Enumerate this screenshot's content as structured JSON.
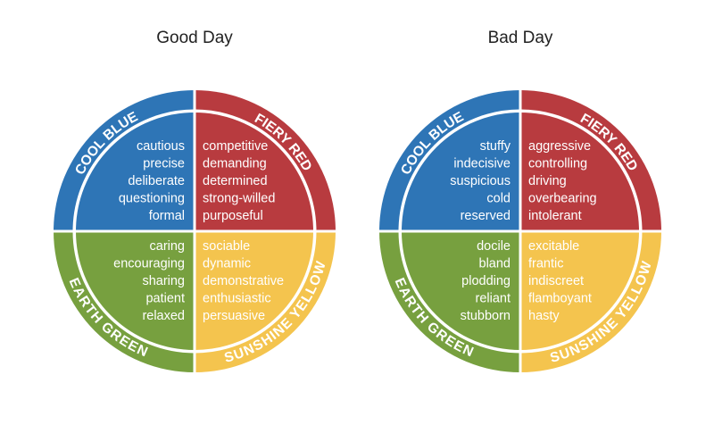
{
  "colors": {
    "blue": "#2E75B6",
    "red": "#B83B3F",
    "green": "#77A03F",
    "yellow": "#F4C44E",
    "separator": "#ffffff"
  },
  "wheels": [
    {
      "title": "Good Day",
      "quadrants": {
        "blue": {
          "label": "COOL BLUE",
          "words": [
            "cautious",
            "precise",
            "deliberate",
            "questioning",
            "formal"
          ]
        },
        "red": {
          "label": "FIERY RED",
          "words": [
            "competitive",
            "demanding",
            "determined",
            "strong-willed",
            "purposeful"
          ]
        },
        "green": {
          "label": "EARTH GREEN",
          "words": [
            "caring",
            "encouraging",
            "sharing",
            "patient",
            "relaxed"
          ]
        },
        "yellow": {
          "label": "SUNSHINE YELLOW",
          "words": [
            "sociable",
            "dynamic",
            "demonstrative",
            "enthusiastic",
            "persuasive"
          ]
        }
      }
    },
    {
      "title": "Bad Day",
      "quadrants": {
        "blue": {
          "label": "COOL BLUE",
          "words": [
            "stuffy",
            "indecisive",
            "suspicious",
            "cold",
            "reserved"
          ]
        },
        "red": {
          "label": "FIERY RED",
          "words": [
            "aggressive",
            "controlling",
            "driving",
            "overbearing",
            "intolerant"
          ]
        },
        "green": {
          "label": "EARTH GREEN",
          "words": [
            "docile",
            "bland",
            "plodding",
            "reliant",
            "stubborn"
          ]
        },
        "yellow": {
          "label": "SUNSHINE YELLOW",
          "words": [
            "excitable",
            "frantic",
            "indiscreet",
            "flamboyant",
            "hasty"
          ]
        }
      }
    }
  ]
}
